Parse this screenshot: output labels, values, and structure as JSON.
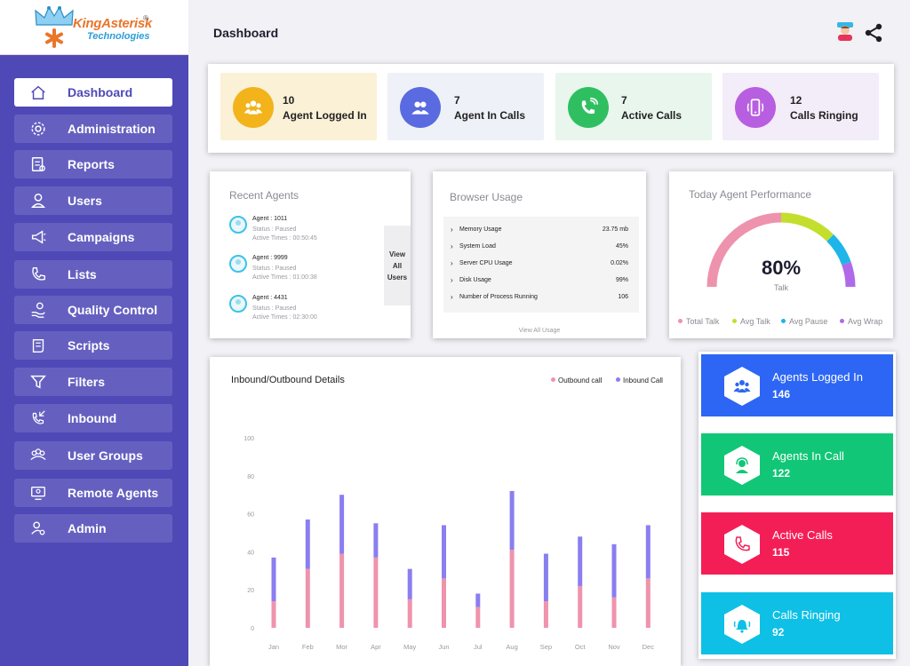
{
  "brand": {
    "name": "KingAsterisk",
    "reg": "®",
    "sub": "Technologies"
  },
  "sidebar": {
    "items": [
      {
        "label": "Dashboard",
        "icon": "home-icon",
        "active": true
      },
      {
        "label": "Administration",
        "icon": "gear-icon"
      },
      {
        "label": "Reports",
        "icon": "report-icon"
      },
      {
        "label": "Users",
        "icon": "user-icon"
      },
      {
        "label": "Campaigns",
        "icon": "megaphone-icon"
      },
      {
        "label": "Lists",
        "icon": "phone-icon"
      },
      {
        "label": "Quality Control",
        "icon": "hand-coin-icon"
      },
      {
        "label": "Scripts",
        "icon": "script-icon"
      },
      {
        "label": "Filters",
        "icon": "funnel-icon"
      },
      {
        "label": "Inbound",
        "icon": "inbound-call-icon"
      },
      {
        "label": "User Groups",
        "icon": "user-group-icon"
      },
      {
        "label": "Remote Agents",
        "icon": "remote-agent-icon"
      },
      {
        "label": "Admin",
        "icon": "admin-user-icon"
      }
    ]
  },
  "header": {
    "title": "Dashboard",
    "icons": [
      "agent-avatar-icon",
      "share-icon"
    ]
  },
  "stats": [
    {
      "value": "10",
      "label": "Agent Logged In",
      "bg": "#fbf1d6",
      "circle": "#f2b31b",
      "icon": "people-icon"
    },
    {
      "value": "7",
      "label": "Agent In Calls",
      "bg": "#eef1f7",
      "circle": "#5a6ae0",
      "icon": "headset-users-icon"
    },
    {
      "value": "7",
      "label": "Active Calls",
      "bg": "#e8f6ed",
      "circle": "#2fbf61",
      "icon": "phone-ring-icon"
    },
    {
      "value": "12",
      "label": "Calls Ringing",
      "bg": "#f3ecf9",
      "circle": "#b85ee0",
      "icon": "mobile-ring-icon"
    }
  ],
  "recent_agents": {
    "title": "Recent Agents",
    "items": [
      {
        "name": "Agent : 1011",
        "status": "Status : Paused",
        "time": "Active Times : 00:50:45"
      },
      {
        "name": "Agent : 9999",
        "status": "Status : Paused",
        "time": "Active Times : 01:00:38"
      },
      {
        "name": "Agent : 4431",
        "status": "Status : Paused",
        "time": "Active Times : 02:30:00"
      }
    ],
    "view_all": [
      "View",
      "All",
      "Users"
    ]
  },
  "browser_usage": {
    "title": "Browser Usage",
    "rows": [
      {
        "label": "Memory Usage",
        "value": "23.75 mb"
      },
      {
        "label": "System Load",
        "value": "45%"
      },
      {
        "label": "Server CPU Usage",
        "value": "0.02%"
      },
      {
        "label": "Disk Usage",
        "value": "99%"
      },
      {
        "label": "Number of Process Running",
        "value": "106"
      }
    ],
    "link": "View All Usage"
  },
  "performance": {
    "title": "Today Agent Performance",
    "percent": "80%",
    "sub": "Talk",
    "segments": [
      {
        "name": "Total Talk",
        "color": "#ee93ad",
        "fraction": 0.5
      },
      {
        "name": "Avg Talk",
        "color": "#c4de2d",
        "fraction": 0.25
      },
      {
        "name": "Avg Pause",
        "color": "#1eb6e8",
        "fraction": 0.14
      },
      {
        "name": "Avg Wrap",
        "color": "#b06ae9",
        "fraction": 0.11
      }
    ]
  },
  "chart_data": {
    "type": "bar",
    "title": "Inbound/Outbound Details",
    "stacked": true,
    "categories": [
      "Jan",
      "Feb",
      "Mor",
      "Apr",
      "May",
      "Jun",
      "Jul",
      "Aug",
      "Sep",
      "Oct",
      "Nov",
      "Dec"
    ],
    "yticks": [
      0,
      20,
      40,
      60,
      80,
      100
    ],
    "ylim": [
      0,
      100
    ],
    "series": [
      {
        "name": "Outbound call",
        "color": "#ef93ad",
        "values": [
          14,
          31,
          39,
          37,
          15,
          26,
          11,
          41,
          14,
          22,
          16,
          26
        ]
      },
      {
        "name": "Inbound Call",
        "color": "#8a7ef0",
        "values": [
          23,
          26,
          31,
          18,
          16,
          28,
          7,
          31,
          25,
          26,
          28,
          28
        ]
      }
    ],
    "legend": "top-right"
  },
  "big_cards": [
    {
      "title": "Agents Logged In",
      "value": "146",
      "color": "#2d66f5",
      "icon": "users-group-icon"
    },
    {
      "title": "Agents In Call",
      "value": "122",
      "color": "#11c777",
      "icon": "headset-agent-icon"
    },
    {
      "title": "Active Calls",
      "value": "115",
      "color": "#f41e57",
      "icon": "phone-icon"
    },
    {
      "title": "Calls Ringing",
      "value": "92",
      "color": "#0ec0e5",
      "icon": "bell-ring-icon"
    }
  ]
}
